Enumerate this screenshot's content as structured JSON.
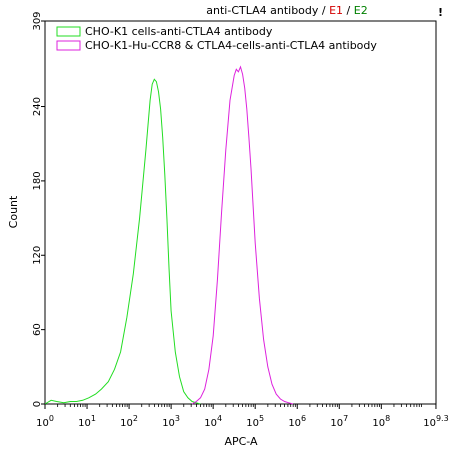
{
  "chart_data": {
    "type": "line",
    "title": {
      "main": "anti-CTLA4 antibody / ",
      "e1": "E1",
      "sep": " / ",
      "e2": "E2",
      "e1_color": "#d40000",
      "e2_color": "#008000"
    },
    "xlabel": "APC-A",
    "ylabel": "Count",
    "xscale": "log",
    "xlim": [
      1,
      2000000000
    ],
    "ylim": [
      0,
      309
    ],
    "grid": false,
    "legend_position": "top-left",
    "x_ticks": [
      {
        "base": "10",
        "exp": "0",
        "value": 1
      },
      {
        "base": "10",
        "exp": "1",
        "value": 10
      },
      {
        "base": "10",
        "exp": "2",
        "value": 100
      },
      {
        "base": "10",
        "exp": "3",
        "value": 1000
      },
      {
        "base": "10",
        "exp": "4",
        "value": 10000
      },
      {
        "base": "10",
        "exp": "5",
        "value": 100000
      },
      {
        "base": "10",
        "exp": "6",
        "value": 1000000
      },
      {
        "base": "10",
        "exp": "7",
        "value": 10000000
      },
      {
        "base": "10",
        "exp": "8",
        "value": 100000000
      },
      {
        "base": "10",
        "exp": "9.3",
        "value": 1995262315
      }
    ],
    "y_ticks": [
      {
        "label": "0",
        "value": 0
      },
      {
        "label": "60",
        "value": 60
      },
      {
        "label": "120",
        "value": 120
      },
      {
        "label": "180",
        "value": 180
      },
      {
        "label": "240",
        "value": 240
      },
      {
        "label": "309",
        "value": 309
      }
    ],
    "series": [
      {
        "name": "CHO-K1 cells-anti-CTLA4 antibody",
        "color": "#22dd22",
        "x": [
          1,
          1.4,
          1.9,
          2.8,
          4,
          5.6,
          7.9,
          11,
          16,
          22,
          32,
          45,
          63,
          89,
          126,
          178,
          251,
          316,
          355,
          398,
          447,
          501,
          562,
          631,
          708,
          794,
          891,
          1000,
          1259,
          1585,
          1995,
          2512,
          3162,
          3981,
          5012
        ],
        "y": [
          0,
          3,
          2,
          1,
          2,
          2,
          3,
          5,
          8,
          12,
          18,
          28,
          42,
          70,
          105,
          150,
          205,
          245,
          258,
          262,
          260,
          252,
          238,
          215,
          185,
          150,
          110,
          75,
          42,
          22,
          10,
          5,
          2,
          1,
          0
        ]
      },
      {
        "name": "CHO-K1-Hu-CCR8 & CTLA4-cells-anti-CTLA4 antibody",
        "color": "#dd22dd",
        "x": [
          3162,
          3981,
          5012,
          6310,
          7943,
          10000,
          12589,
          15849,
          19953,
          25119,
          31623,
          35481,
          39811,
          44668,
          50119,
          56234,
          63096,
          70795,
          79433,
          89125,
          100000,
          125893,
          158489,
          199526,
          251189,
          316228,
          398107,
          501187,
          630957,
          794328
        ],
        "y": [
          0,
          2,
          5,
          12,
          28,
          55,
          100,
          155,
          205,
          245,
          265,
          270,
          268,
          272,
          266,
          255,
          238,
          215,
          190,
          160,
          130,
          85,
          52,
          30,
          16,
          8,
          4,
          2,
          1,
          0
        ]
      }
    ]
  }
}
